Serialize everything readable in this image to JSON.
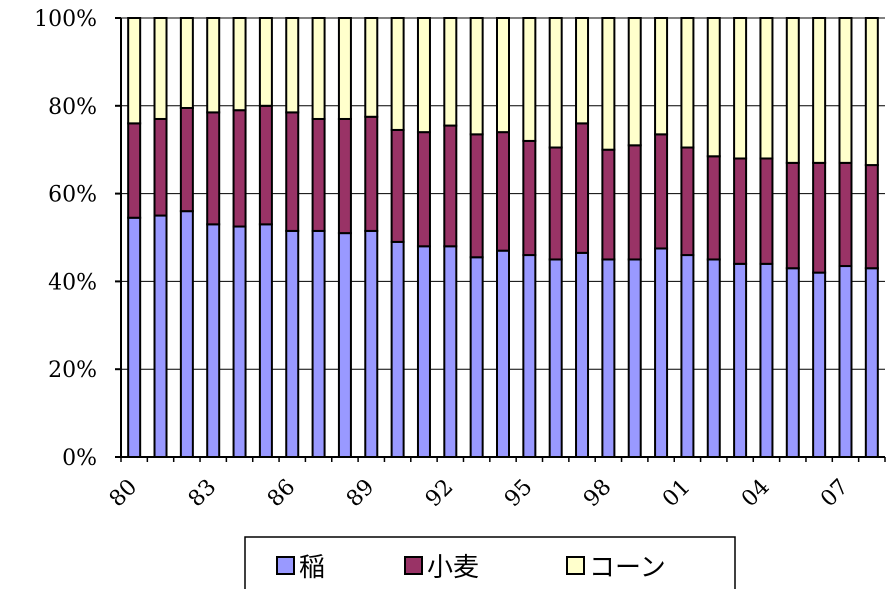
{
  "chart_data": {
    "type": "bar",
    "stacked": true,
    "percent": true,
    "title": "",
    "xlabel": "",
    "ylabel": "",
    "ylim": [
      0,
      100
    ],
    "y_ticks": [
      "0%",
      "20%",
      "40%",
      "60%",
      "80%",
      "100%"
    ],
    "x_tick_labels": [
      "80",
      "83",
      "86",
      "89",
      "92",
      "95",
      "98",
      "01",
      "04",
      "07"
    ],
    "categories": [
      "1980",
      "1981",
      "1982",
      "1983",
      "1984",
      "1985",
      "1986",
      "1987",
      "1988",
      "1989",
      "1990",
      "1991",
      "1992",
      "1993",
      "1994",
      "1995",
      "1996",
      "1997",
      "1998",
      "1999",
      "2000",
      "2001",
      "2002",
      "2003",
      "2004",
      "2005",
      "2006",
      "2007",
      "2008"
    ],
    "series": [
      {
        "name": "稲",
        "color": "#9999ff",
        "values": [
          54.5,
          55,
          56,
          53,
          52.5,
          53,
          51.5,
          51.5,
          51,
          51.5,
          49,
          48,
          48,
          45.5,
          47,
          46,
          45,
          46.5,
          45,
          45,
          47.5,
          46,
          45,
          44,
          44,
          43,
          42,
          43.5,
          43
        ]
      },
      {
        "name": "小麦",
        "color": "#993366",
        "values": [
          21.5,
          22,
          23.5,
          25.5,
          26.5,
          27,
          27,
          25.5,
          26,
          26,
          25.5,
          26,
          27.5,
          28,
          27,
          26,
          25.5,
          29.5,
          25,
          26,
          26,
          24.5,
          23.5,
          24,
          24,
          24,
          25,
          23.5,
          23.5
        ]
      },
      {
        "name": "コーン",
        "color": "#ffffcc",
        "values": [
          24,
          23,
          20.5,
          21.5,
          21,
          20,
          21.5,
          23,
          23,
          22.5,
          25.5,
          26,
          24.5,
          26.5,
          26,
          28,
          29.5,
          24,
          30,
          29,
          26.5,
          29.5,
          31.5,
          32,
          32,
          33,
          33,
          33,
          33.5
        ]
      }
    ],
    "grid": true,
    "legend_position": "bottom"
  }
}
